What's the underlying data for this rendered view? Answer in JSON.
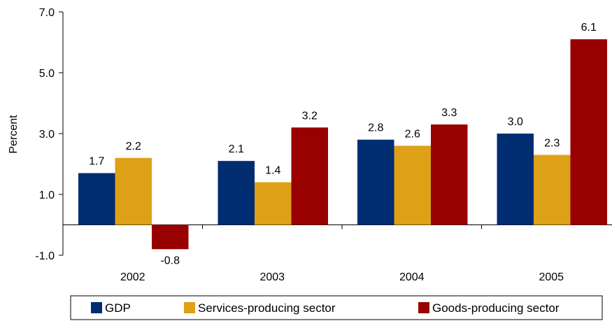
{
  "chart_data": {
    "type": "bar",
    "ylabel": "Percent",
    "ylim": [
      -1.0,
      7.0
    ],
    "yticks": [
      -1.0,
      1.0,
      3.0,
      5.0,
      7.0
    ],
    "ytick_labels": [
      "-1.0",
      "1.0",
      "3.0",
      "5.0",
      "7.0"
    ],
    "categories": [
      "2002",
      "2003",
      "2004",
      "2005"
    ],
    "series": [
      {
        "name": "GDP",
        "color": "#002D72",
        "values": [
          1.7,
          2.1,
          2.8,
          3.0
        ],
        "labels": [
          "1.7",
          "2.1",
          "2.8",
          "3.0"
        ]
      },
      {
        "name": "Services-producing sector",
        "color": "#DDA017",
        "values": [
          2.2,
          1.4,
          2.6,
          2.3
        ],
        "labels": [
          "2.2",
          "1.4",
          "2.6",
          "2.3"
        ]
      },
      {
        "name": "Goods-producing sector",
        "color": "#990000",
        "values": [
          -0.8,
          3.2,
          3.3,
          6.1
        ],
        "labels": [
          "-0.8",
          "3.2",
          "3.3",
          "6.1"
        ]
      }
    ],
    "legend_position": "bottom",
    "grid": false
  }
}
